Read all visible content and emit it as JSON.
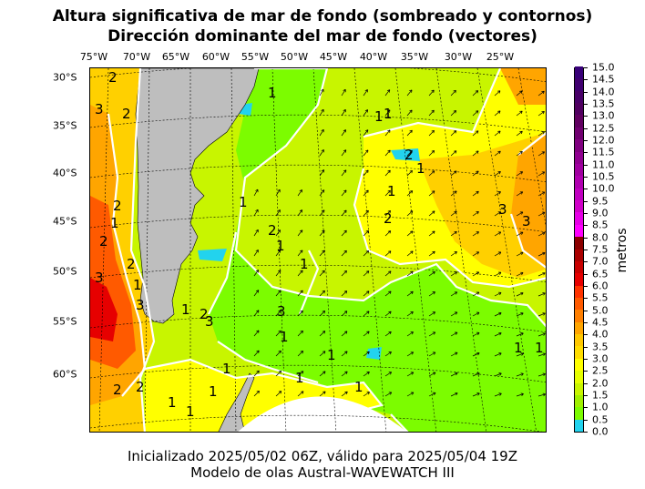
{
  "title": {
    "line1": "Altura significativa de mar de fondo (sombreado y contornos)",
    "line2": "Dirección dominante del mar de fondo (vectores)"
  },
  "footer": {
    "line1": "Inicializado 2025/05/02 06Z, válido para 2025/05/04 19Z",
    "line2": "Modelo de olas Austral-WAVEWATCH III"
  },
  "map": {
    "lon_labels": [
      "75°W",
      "70°W",
      "65°W",
      "60°W",
      "55°W",
      "50°W",
      "45°W",
      "40°W",
      "35°W",
      "30°W",
      "25°W"
    ],
    "lat_labels": [
      "30°S",
      "35°S",
      "40°S",
      "45°S",
      "50°S",
      "55°S",
      "60°S"
    ],
    "contour_labels": [
      "1",
      "2",
      "3"
    ],
    "colors": {
      "land": "#bebebe",
      "ocean_low": "#7cfc00",
      "ocean_high": "#ffa500",
      "contour": "#ffffff"
    }
  },
  "colorbar": {
    "label": "metros",
    "ticks": [
      "0.0",
      "0.5",
      "1.0",
      "1.5",
      "2.0",
      "2.5",
      "3.0",
      "3.5",
      "4.0",
      "4.5",
      "5.0",
      "5.5",
      "6.0",
      "6.5",
      "7.0",
      "7.5",
      "8.0",
      "8.5",
      "9.0",
      "9.5",
      "10.0",
      "10.5",
      "11.0",
      "11.5",
      "12.0",
      "12.5",
      "13.0",
      "13.5",
      "14.0",
      "14.5",
      "15.0"
    ],
    "colors": [
      "#22d3ee",
      "#7cfc00",
      "#a0f000",
      "#c8f500",
      "#e6ff00",
      "#ffff00",
      "#ffdd00",
      "#ffc800",
      "#ffa500",
      "#ff7f00",
      "#ff5a00",
      "#ff3300",
      "#e60000",
      "#c80000",
      "#aa0000",
      "#8b0000",
      "#ff00ff",
      "#e600e6",
      "#d000c8",
      "#c000c0",
      "#b000b0",
      "#a000a0",
      "#900090",
      "#800080",
      "#700070",
      "#600060",
      "#500060",
      "#480068",
      "#400070",
      "#380078"
    ]
  }
}
